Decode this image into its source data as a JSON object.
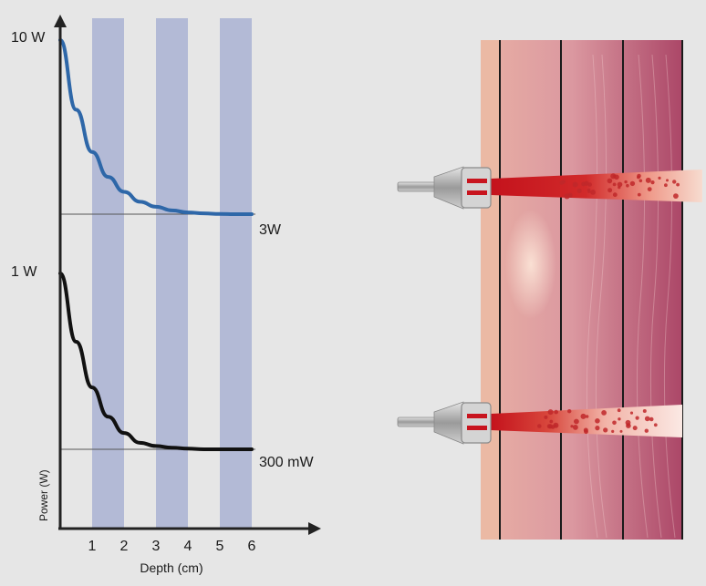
{
  "chart_data": {
    "type": "line",
    "xlabel": "Depth (cm)",
    "ylabel": "Power (W)",
    "x_ticks": [
      "1",
      "2",
      "3",
      "4",
      "5",
      "6"
    ],
    "xlim": [
      0,
      6
    ],
    "y_labels": {
      "top": "10 W",
      "mid": "1 W"
    },
    "shaded_bands": [
      [
        1,
        2
      ],
      [
        3,
        4
      ],
      [
        5,
        6
      ]
    ],
    "series": [
      {
        "color": "#2e67a8",
        "start_value_label": "10 W",
        "end_label": "3W",
        "x": [
          0,
          0.5,
          1,
          1.5,
          2,
          2.5,
          3,
          3.5,
          4,
          4.5,
          5,
          5.5,
          6
        ],
        "values": [
          10,
          7.2,
          5.5,
          4.5,
          3.9,
          3.5,
          3.3,
          3.15,
          3.07,
          3.03,
          3.01,
          3.0,
          3.0
        ]
      },
      {
        "color": "#111111",
        "start_value_label": "1 W",
        "end_label": "300 mW",
        "x": [
          0,
          0.5,
          1,
          1.5,
          2,
          2.5,
          3,
          3.5,
          4,
          4.5,
          5,
          5.5,
          6
        ],
        "values": [
          0.84,
          0.63,
          0.49,
          0.4,
          0.35,
          0.32,
          0.31,
          0.305,
          0.302,
          0.3,
          0.3,
          0.3,
          0.3
        ]
      }
    ],
    "reference_lines": [
      3,
      0.3
    ]
  },
  "colors": {
    "band": "#b3bad6",
    "skin_outer": "#ebb9a4",
    "tissue_light": "#dfa2a5",
    "tissue_dark": "#ad4668",
    "beam": "#c81e1e",
    "probe": "#a3a3a3"
  },
  "diagram": {
    "probe_count": 2,
    "tissue_layers": 4
  }
}
